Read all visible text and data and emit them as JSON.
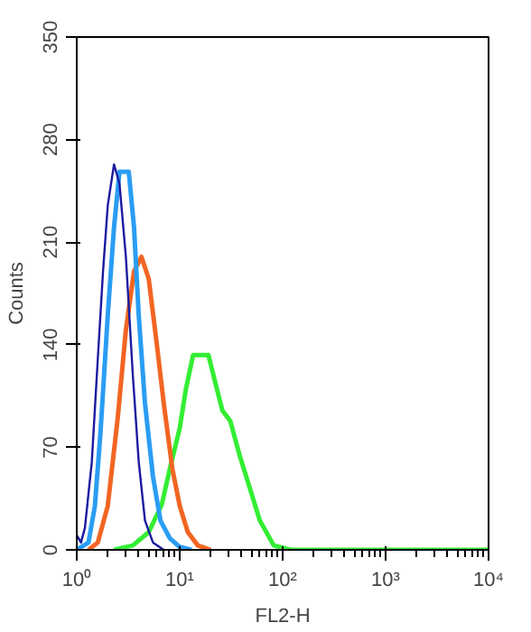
{
  "chart_data": {
    "type": "line",
    "xlabel": "FL2-H",
    "ylabel": "Counts",
    "log": "x",
    "grid": false,
    "xlim": [
      1,
      10000
    ],
    "ylim": [
      0,
      350
    ],
    "xticks": [
      {
        "value": 1,
        "label": "10⁰"
      },
      {
        "value": 10,
        "label": "10¹"
      },
      {
        "value": 100,
        "label": "10²"
      },
      {
        "value": 1000,
        "label": "10³"
      },
      {
        "value": 10000,
        "label": "10⁴"
      }
    ],
    "yticks": [
      0,
      70,
      140,
      210,
      280,
      350
    ],
    "series": [
      {
        "color": "#33ee33",
        "x": [
          2.3,
          3.5,
          5,
          6.7,
          8,
          10,
          11.5,
          13.5,
          19,
          22,
          26,
          31,
          38,
          49,
          60,
          82,
          120,
          10000
        ],
        "values": [
          0,
          3,
          12,
          31,
          55,
          83,
          110,
          133,
          133,
          115,
          95,
          88,
          65,
          40,
          20,
          3,
          0,
          0
        ]
      },
      {
        "color": "#f26522",
        "x": [
          1.3,
          1.6,
          2.0,
          2.5,
          3.0,
          3.6,
          4.25,
          5.0,
          6.0,
          7.0,
          8.5,
          10,
          12,
          15,
          20
        ],
        "values": [
          0,
          5,
          30,
          90,
          150,
          190,
          200,
          185,
          140,
          100,
          55,
          30,
          12,
          3,
          0
        ]
      },
      {
        "color": "#2a9df4",
        "x": [
          1.0,
          1.3,
          1.5,
          1.7,
          2.0,
          2.3,
          2.6,
          3.2,
          3.6,
          4.0,
          4.6,
          5.5,
          6.5,
          8,
          10,
          13
        ],
        "values": [
          0,
          5,
          30,
          80,
          160,
          220,
          258,
          258,
          220,
          160,
          100,
          50,
          20,
          8,
          2,
          0
        ]
      },
      {
        "color": "#1a1aa0",
        "x": [
          1.0,
          1.1,
          1.2,
          1.4,
          1.6,
          1.8,
          2.0,
          2.3,
          2.6,
          3.0,
          3.5,
          4.0,
          4.6,
          5.5,
          7
        ],
        "values": [
          10,
          5,
          15,
          60,
          130,
          190,
          235,
          263,
          250,
          200,
          120,
          60,
          20,
          5,
          0
        ]
      }
    ]
  }
}
